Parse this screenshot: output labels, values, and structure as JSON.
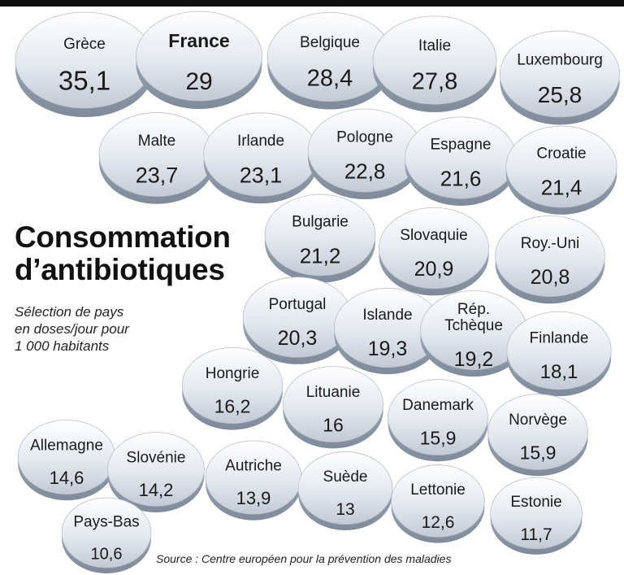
{
  "title_lines": [
    "Consommation",
    "d’antibiotiques"
  ],
  "subtitle_lines": [
    "Sélection de pays",
    "en doses/jour pour",
    "1 000 habitants"
  ],
  "source": "Source : Centre européen pour la prévention des maladies",
  "colors": {
    "pill_top": "#ffffff",
    "pill_mid": "#dde2ea",
    "pill_bottom": "#b5bdc9",
    "pill_edge": "#8f99a8",
    "text": "#1a1a1a"
  },
  "chart_data": {
    "type": "bar",
    "title": "Consommation d’antibiotiques",
    "subtitle": "Sélection de pays en doses/jour pour 1 000 habitants",
    "unit": "doses/jour pour 1 000 habitants",
    "highlight": "France",
    "categories": [
      "Grèce",
      "France",
      "Belgique",
      "Italie",
      "Luxembourg",
      "Malte",
      "Irlande",
      "Pologne",
      "Espagne",
      "Croatie",
      "Bulgarie",
      "Slovaquie",
      "Roy.-Uni",
      "Portugal",
      "Islande",
      "Rép. Tchèque",
      "Finlande",
      "Hongrie",
      "Lituanie",
      "Danemark",
      "Norvège",
      "Allemagne",
      "Slovénie",
      "Autriche",
      "Suède",
      "Lettonie",
      "Estonie",
      "Pays-Bas"
    ],
    "values": [
      35.1,
      29,
      28.4,
      27.8,
      25.8,
      23.7,
      23.1,
      22.8,
      21.6,
      21.4,
      21.2,
      20.9,
      20.8,
      20.3,
      19.3,
      19.2,
      18.1,
      16.2,
      16,
      15.9,
      15.9,
      14.6,
      14.2,
      13.9,
      13,
      12.6,
      11.7,
      10.6
    ],
    "labels": [
      "35,1",
      "29",
      "28,4",
      "27,8",
      "25,8",
      "23,7",
      "23,1",
      "22,8",
      "21,6",
      "21,4",
      "21,2",
      "20,9",
      "20,8",
      "20,3",
      "19,3",
      "19,2",
      "18,1",
      "16,2",
      "16",
      "15,9",
      "15,9",
      "14,6",
      "14,2",
      "13,9",
      "13",
      "12,6",
      "11,7",
      "10,6"
    ]
  }
}
